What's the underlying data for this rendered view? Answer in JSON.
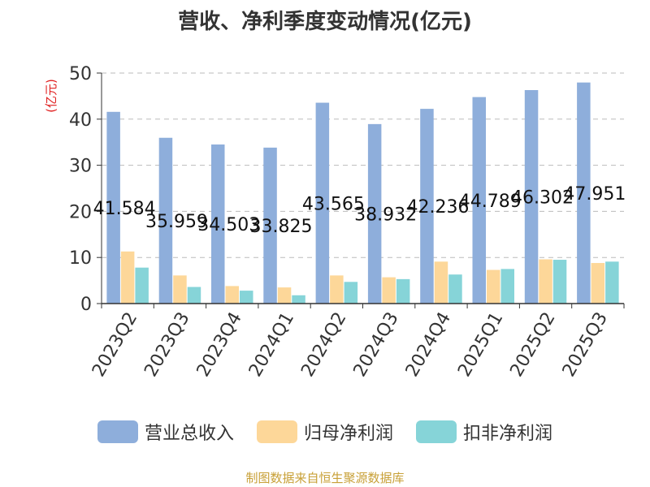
{
  "chart_data": {
    "type": "bar",
    "title": "营收、净利季度变动情况(亿元)",
    "ylabel": "(亿元)",
    "ylim": [
      0,
      50
    ],
    "yticks": [
      0,
      10,
      20,
      30,
      40,
      50
    ],
    "grid": true,
    "legend_position": "bottom",
    "categories": [
      "2023Q2",
      "2023Q3",
      "2023Q4",
      "2024Q1",
      "2024Q2",
      "2024Q3",
      "2024Q4",
      "2025Q1",
      "2025Q2",
      "2025Q3"
    ],
    "series": [
      {
        "name": "营业总收入",
        "color": "#8eaedb",
        "values": [
          41.584,
          35.959,
          34.503,
          33.825,
          43.565,
          38.932,
          42.236,
          44.789,
          46.302,
          47.951
        ],
        "labels": [
          "41.584",
          "35.959",
          "34.503",
          "33.825",
          "43.565",
          "38.932",
          "42.236",
          "44.789",
          "46.302",
          "47.951"
        ]
      },
      {
        "name": "归母净利润",
        "color": "#fdd799",
        "values": [
          11.3,
          6.1,
          3.8,
          3.5,
          6.1,
          5.7,
          9.1,
          7.3,
          9.6,
          8.8
        ]
      },
      {
        "name": "扣非净利润",
        "color": "#86d4d8",
        "values": [
          7.8,
          3.6,
          2.8,
          1.8,
          4.7,
          5.3,
          6.3,
          7.5,
          9.5,
          9.1
        ]
      }
    ]
  },
  "footer": "制图数据来自恒生聚源数据库"
}
